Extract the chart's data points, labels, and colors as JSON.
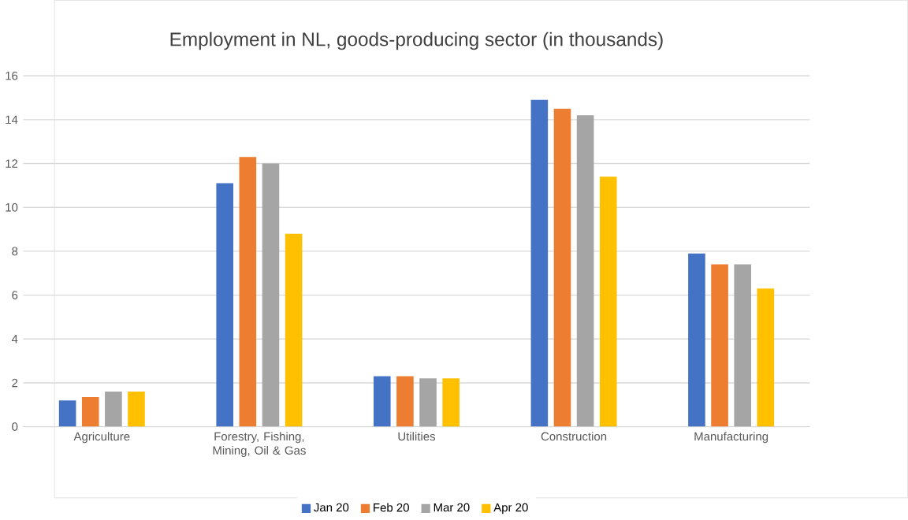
{
  "chart_data": {
    "type": "bar",
    "title": "Employment in NL, goods-producing sector (in thousands)",
    "categories": [
      "Agriculture",
      "Forestry, Fishing, Mining, Oil & Gas",
      "Utilities",
      "Construction",
      "Manufacturing"
    ],
    "series": [
      {
        "name": "Jan 20",
        "color": "#4472c4",
        "values": [
          1.2,
          11.1,
          2.3,
          14.9,
          7.9
        ]
      },
      {
        "name": "Feb 20",
        "color": "#ed7d31",
        "values": [
          1.35,
          12.3,
          2.3,
          14.5,
          7.4
        ]
      },
      {
        "name": "Mar 20",
        "color": "#a5a5a5",
        "values": [
          1.6,
          12.0,
          2.2,
          14.2,
          7.4
        ]
      },
      {
        "name": "Apr 20",
        "color": "#ffc000",
        "values": [
          1.6,
          8.8,
          2.2,
          11.4,
          6.3
        ]
      }
    ],
    "ylim": [
      0,
      16
    ],
    "yticks": [
      0,
      2,
      4,
      6,
      8,
      10,
      12,
      14,
      16
    ],
    "grid": "y",
    "legend": "bottom"
  }
}
